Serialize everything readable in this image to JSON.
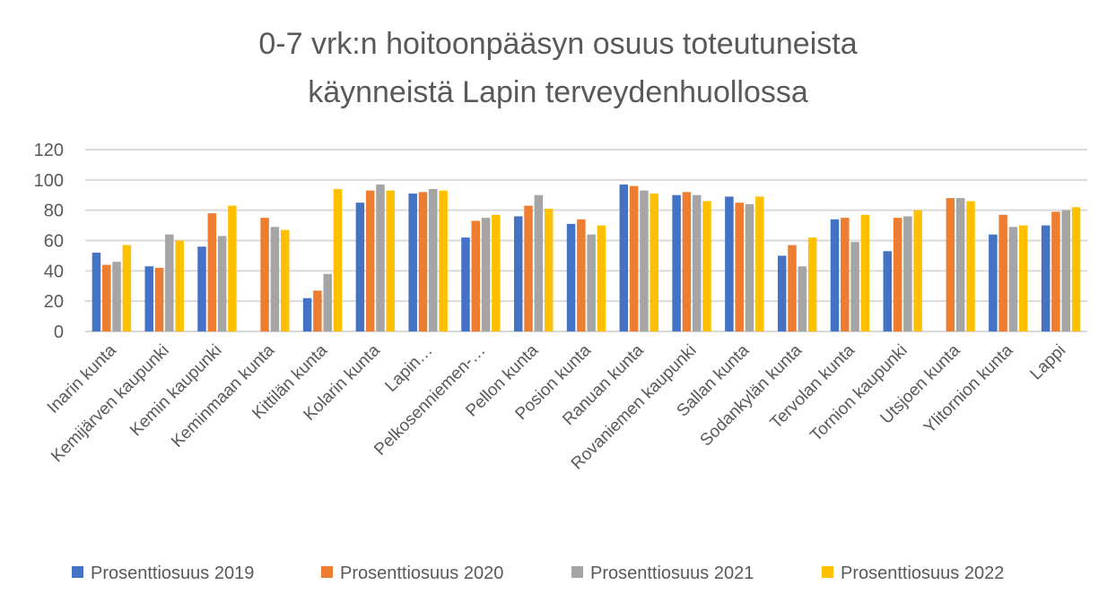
{
  "chart_data": {
    "type": "bar",
    "title": [
      "0-7 vrk:n hoitoonpääsyn osuus toteutuneista",
      "käynneistä Lapin terveydenhuollossa"
    ],
    "xlabel": "",
    "ylabel": "",
    "ylim": [
      0,
      120
    ],
    "yticks": [
      0,
      20,
      40,
      60,
      80,
      100,
      120
    ],
    "grid": true,
    "legend_position": "bottom",
    "categories": [
      "Inarin kunta",
      "Kemijärven kaupunki",
      "Kemin kaupunki",
      "Keminmaan kunta",
      "Kittilän kunta",
      "Kolarin kunta",
      "Lapin…",
      "Pelkosenniemen-…",
      "Pellon kunta",
      "Posion kunta",
      "Ranuan kunta",
      "Rovaniemen kaupunki",
      "Sallan kunta",
      "Sodankylän kunta",
      "Tervolan kunta",
      "Tornion kaupunki",
      "Utsjoen kunta",
      "Ylitornion kunta",
      "Lappi"
    ],
    "series": [
      {
        "name": "Prosenttiosuus 2019",
        "color": "#4472C4",
        "values": [
          52,
          43,
          56,
          null,
          22,
          85,
          91,
          62,
          76,
          71,
          97,
          90,
          89,
          50,
          74,
          53,
          null,
          64,
          70
        ]
      },
      {
        "name": "Prosenttiosuus 2020",
        "color": "#ED7D31",
        "values": [
          44,
          42,
          78,
          75,
          27,
          93,
          92,
          73,
          83,
          74,
          96,
          92,
          85,
          57,
          75,
          75,
          88,
          77,
          79
        ]
      },
      {
        "name": "Prosenttiosuus 2021",
        "color": "#A5A5A5",
        "values": [
          46,
          64,
          63,
          69,
          38,
          97,
          94,
          75,
          90,
          64,
          93,
          90,
          84,
          43,
          59,
          76,
          88,
          69,
          80
        ]
      },
      {
        "name": "Prosenttiosuus 2022",
        "color": "#FFC000",
        "values": [
          57,
          60,
          83,
          67,
          94,
          93,
          93,
          77,
          81,
          70,
          91,
          86,
          89,
          62,
          77,
          80,
          86,
          70,
          82
        ]
      }
    ]
  }
}
